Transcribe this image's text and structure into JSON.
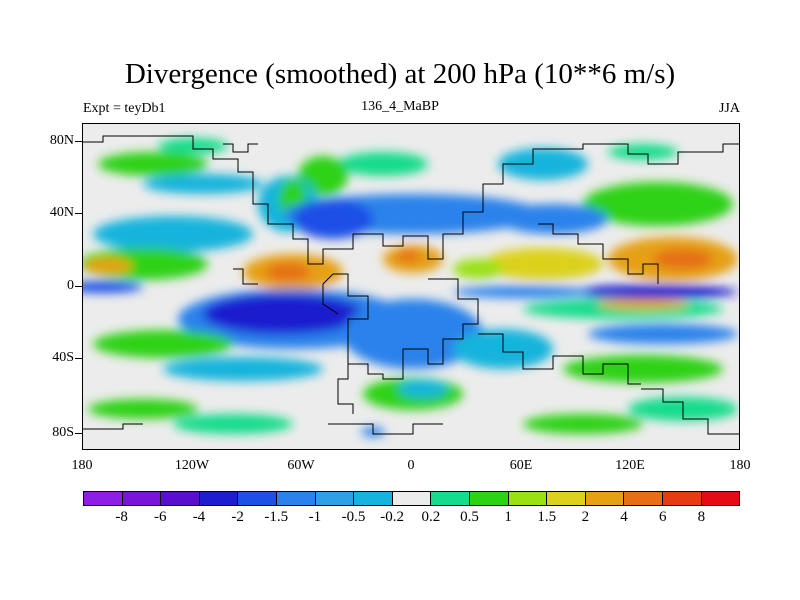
{
  "title": "Divergence (smoothed) at 200 hPa (10**6 m/s)",
  "experiment": "Expt = teyDb1",
  "run_id": "136_4_MaBP",
  "season": "JJA",
  "lat_labels": [
    "80N",
    "40N",
    "0",
    "40S",
    "80S"
  ],
  "lon_labels": [
    "180",
    "120W",
    "60W",
    "0",
    "60E",
    "120E",
    "180"
  ],
  "colorbar": {
    "colors": [
      "#8c1ee6",
      "#7a14d9",
      "#5a0fcf",
      "#1e1ecf",
      "#1e50e6",
      "#2b82eb",
      "#2da0e6",
      "#14b4dc",
      "#ececec",
      "#14dc8c",
      "#2dd214",
      "#9ae114",
      "#dcd21e",
      "#e6a014",
      "#e66e14",
      "#e63c14",
      "#e60a14"
    ],
    "labels": [
      "-8",
      "-6",
      "-4",
      "-2",
      "-1.5",
      "-1",
      "-0.5",
      "-0.2",
      "0.2",
      "0.5",
      "1",
      "1.5",
      "2",
      "4",
      "6",
      "8"
    ]
  }
}
